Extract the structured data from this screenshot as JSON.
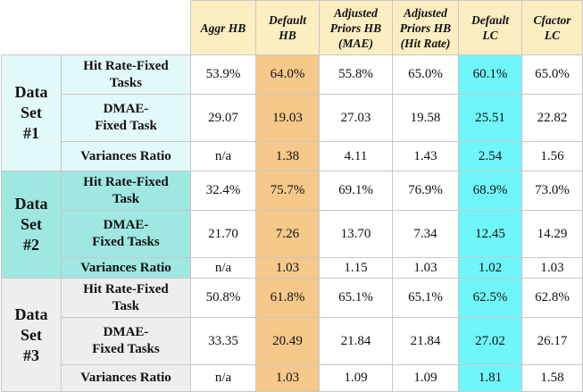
{
  "columns": [
    {
      "label": "Aggr HB"
    },
    {
      "label": "Default\nHB"
    },
    {
      "label": "Adjusted\nPriors HB\n(MAE)"
    },
    {
      "label": "Adjusted\nPriors HB\n(Hit Rate)"
    },
    {
      "label": "Default\nLC"
    },
    {
      "label": "Cfactor\nLC"
    }
  ],
  "colors": {
    "header_bg": "#fdeec2",
    "default_hb_highlight": "#f6c889",
    "default_lc_highlight": "#6ff6fb",
    "set1_bg": "#e2f9f9",
    "set2_bg": "#9fe7e1",
    "set3_bg": "#eeeeee"
  },
  "datasets": [
    {
      "label": "Data\nSet\n#1",
      "rows": [
        {
          "metric": "Hit Rate-Fixed\nTasks",
          "values": [
            "53.9%",
            "64.0%",
            "55.8%",
            "65.0%",
            "60.1%",
            "65.0%"
          ]
        },
        {
          "metric": "DMAE-\nFixed Task",
          "values": [
            "29.07",
            "19.03",
            "27.03",
            "19.58",
            "25.51",
            "22.82"
          ]
        },
        {
          "metric": "Variances Ratio",
          "values": [
            "n/a",
            "1.38",
            "4.11",
            "1.43",
            "2.54",
            "1.56"
          ]
        }
      ]
    },
    {
      "label": "Data\nSet\n#2",
      "rows": [
        {
          "metric": "Hit Rate-Fixed\nTask",
          "values": [
            "32.4%",
            "75.7%",
            "69.1%",
            "76.9%",
            "68.9%",
            "73.0%"
          ]
        },
        {
          "metric": "DMAE-\nFixed Tasks",
          "values": [
            "21.70",
            "7.26",
            "13.70",
            "7.34",
            "12.45",
            "14.29"
          ]
        },
        {
          "metric": "Variances Ratio",
          "values": [
            "n/a",
            "1.03",
            "1.15",
            "1.03",
            "1.02",
            "1.03"
          ]
        }
      ]
    },
    {
      "label": "Data\nSet\n#3",
      "rows": [
        {
          "metric": "Hit Rate-Fixed\nTask",
          "values": [
            "50.8%",
            "61.8%",
            "65.1%",
            "65.1%",
            "62.5%",
            "62.8%"
          ]
        },
        {
          "metric": "DMAE-\nFixed Tasks",
          "values": [
            "33.35",
            "20.49",
            "21.84",
            "21.84",
            "27.02",
            "26.17"
          ]
        },
        {
          "metric": "Variances Ratio",
          "values": [
            "n/a",
            "1.03",
            "1.09",
            "1.09",
            "1.81",
            "1.58"
          ]
        }
      ]
    }
  ]
}
